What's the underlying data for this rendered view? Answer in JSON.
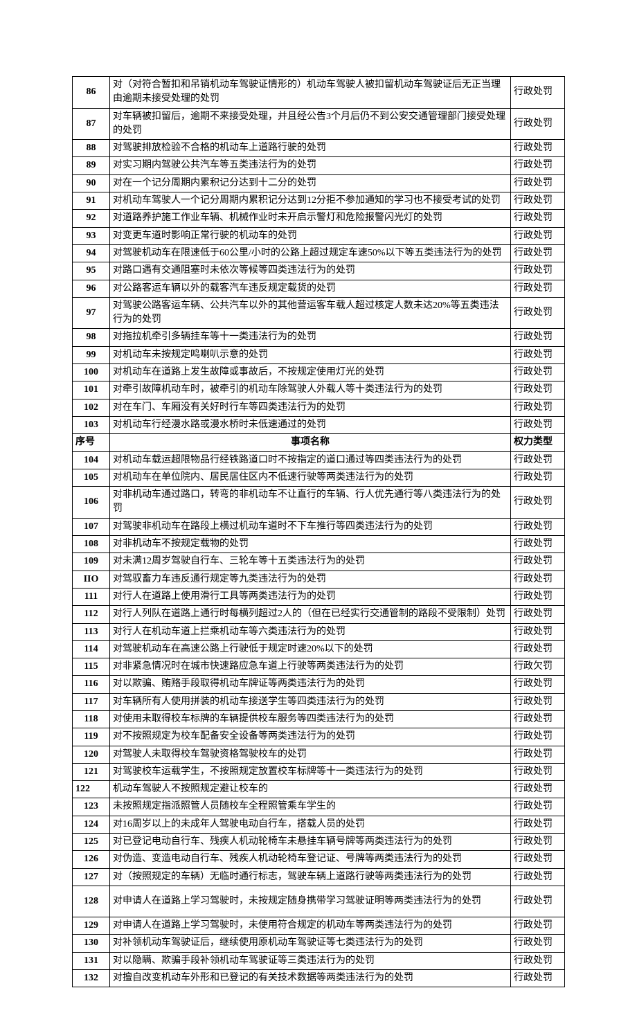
{
  "header": {
    "seq": "序号",
    "desc": "事项名称",
    "type": "权力类型"
  },
  "type_label": "行政处罚",
  "type_label_alt": "行政欠罚",
  "rows": [
    {
      "seq": "86",
      "desc": "对（对符合暂扣和吊销机动车驾驶证情形的）机动车驾驶人被扣留机动车驾驶证后无正当理由逾期未接受处理的处罚",
      "type": "行政处罚"
    },
    {
      "seq": "87",
      "desc": "对车辆被扣留后，逾期不来接受处理，并且经公告3个月后仍不到公安交通管理部门接受处理的处罚",
      "type": "行政处罚"
    },
    {
      "seq": "88",
      "desc": "对驾驶排放检验不合格的机动车上道路行驶的处罚",
      "type": "行政处罚"
    },
    {
      "seq": "89",
      "desc": "对实习期内驾驶公共汽车等五类违法行为的处罚",
      "type": "行政处罚"
    },
    {
      "seq": "90",
      "desc": "对在一个记分周期内累积记分达到十二分的处罚",
      "type": "行政处罚"
    },
    {
      "seq": "91",
      "desc": "对机动车驾驶人一个记分周期内累积记分达到12分拒不参加通知的学习也不接受考试的处罚",
      "type": "行政处罚"
    },
    {
      "seq": "92",
      "desc": "对道路养护施工作业车辆、机械作业时未开启示警灯和危险报警闪光灯的处罚",
      "type": "行政处罚"
    },
    {
      "seq": "93",
      "desc": "对变更车道时影响正常行驶的机动车的处罚",
      "type": "行政处罚"
    },
    {
      "seq": "94",
      "desc": "对驾驶机动车在限速低于60公里/小时的公路上超过规定车速50%以下等五类违法行为的处罚",
      "type": "行政处罚"
    },
    {
      "seq": "95",
      "desc": "对路口遇有交通阻塞时未依次等候等四类违法行为的处罚",
      "type": "行政处罚"
    },
    {
      "seq": "96",
      "desc": "对公路客运车辆以外的载客汽车违反规定载货的处罚",
      "type": "行政处罚"
    },
    {
      "seq": "97",
      "desc": "对驾驶公路客运车辆、公共汽车以外的其他营运客车载人超过核定人数未达20%等五类违法行为的处罚",
      "type": "行政处罚"
    },
    {
      "seq": "98",
      "desc": "对拖拉机牵引多辆挂车等十一类违法行为的处罚",
      "type": "行政处罚"
    },
    {
      "seq": "99",
      "desc": "对机动车未按规定鸣喇叭示意的处罚",
      "type": "行政处罚"
    },
    {
      "seq": "100",
      "desc": "对机动车在道路上发生故障或事故后，不按规定使用灯光的处罚",
      "type": "行政处罚"
    },
    {
      "seq": "101",
      "desc": "对牵引故障机动车时，被牵引的机动车除驾驶人外载人等十类违法行为的处罚",
      "type": "行政处罚"
    },
    {
      "seq": "102",
      "desc": "对在车门、车厢没有关好时行车等四类违法行为的处罚",
      "type": "行政处罚"
    },
    {
      "seq": "103",
      "desc": "对机动车行经漫水路或漫水桥时未低速通过的处罚",
      "type": "行政处罚"
    },
    {
      "seq": "HEADER",
      "desc": "",
      "type": ""
    },
    {
      "seq": "104",
      "desc": "对机动车载运超限物品行经铁路道口时不按指定的道口通过等四类违法行为的处罚",
      "type": "行政处罚"
    },
    {
      "seq": "105",
      "desc": "对机动车在单位院内、居民居住区内不低速行驶等两类违法行为的处罚",
      "type": "行政处罚"
    },
    {
      "seq": "106",
      "desc": "对非机动车通过路口，转弯的非机动车不让直行的车辆、行人优先通行等八类违法行为的处罚",
      "type": "行政处罚"
    },
    {
      "seq": "107",
      "desc": "对驾驶非机动车在路段上横过机动车道时不下车推行等四类违法行为的处罚",
      "type": "行政处罚"
    },
    {
      "seq": "108",
      "desc": "对非机动车不按规定载物的处罚",
      "type": "行政处罚"
    },
    {
      "seq": "109",
      "desc": "对未满12周岁驾驶自行车、三轮车等十五类违法行为的处罚",
      "type": "行政处罚"
    },
    {
      "seq": "IIO",
      "desc": "对驾驭畜力车违反通行规定等九类违法行为的处罚",
      "type": "行政处罚"
    },
    {
      "seq": "111",
      "desc": "对行人在道路上使用滑行工具等两类违法行为的处罚",
      "type": "行政处罚"
    },
    {
      "seq": "112",
      "desc": "对行人列队在道路上通行时每横列超过2人的（但在已经实行交通管制的路段不受限制）处罚",
      "type": "行政处罚"
    },
    {
      "seq": "113",
      "desc": "对行人在机动车道上拦乘机动车等六类违法行为的处罚",
      "type": "行政处罚"
    },
    {
      "seq": "114",
      "desc": "对驾驶机动车在高速公路上行驶低于规定时速20%以下的处罚",
      "type": "行政处罚"
    },
    {
      "seq": "115",
      "desc": "对非紧急情况时在城市快速路应急车道上行驶等两类违法行为的处罚",
      "type": "行政欠罚"
    },
    {
      "seq": "116",
      "desc": "对以欺骗、贿赂手段取得机动车牌证等两类违法行为的处罚",
      "type": "行政处罚"
    },
    {
      "seq": "117",
      "desc": "对车辆所有人使用拼装的机动车接送学生等四类违法行为的处罚",
      "type": "行政处罚"
    },
    {
      "seq": "118",
      "desc": "对使用未取得校车标牌的车辆提供校车服务等四类违法行为的处罚",
      "type": "行政处罚"
    },
    {
      "seq": "119",
      "desc": "对不按照规定为校车配备安全设备等两类违法行为的处罚",
      "type": "行政处罚"
    },
    {
      "seq": "120",
      "desc": "对驾驶人未取得校车驾驶资格驾驶校车的处罚",
      "type": "行政处罚"
    },
    {
      "seq": "121",
      "desc": "对驾驶校车运载学生，不按照规定放置校车标牌等十一类违法行为的处罚",
      "type": "行政处罚"
    },
    {
      "seq": "122",
      "desc": "机动车驾驶人不按照规定避让校车的",
      "type": "行政处罚",
      "seqLeft": true
    },
    {
      "seq": "123",
      "desc": "未按照规定指派照管人员随校车全程照管乘车学生的",
      "type": "行政处罚"
    },
    {
      "seq": "124",
      "desc": "对16周岁以上的未成年人驾驶电动自行车，搭载人员的处罚",
      "type": "行政处罚"
    },
    {
      "seq": "125",
      "desc": "对已登记电动自行车、残疾人机动轮椅车未悬挂车辆号牌等两类违法行为的处罚",
      "type": "行政处罚"
    },
    {
      "seq": "126",
      "desc": "对伪造、变造电动自行车、残疾人机动轮椅车登记证、号牌等两类违法行为的处罚",
      "type": "行政处罚"
    },
    {
      "seq": "127",
      "desc": "对（按照规定的车辆）无临时通行标志，驾驶车辆上道路行驶等两类违法行为的处罚",
      "type": "行政处罚"
    },
    {
      "seq": "128",
      "desc": "对申请人在道路上学习驾驶时，未按规定随身携带学习驾驶证明等两类违法行为的处罚",
      "type": "行政处罚",
      "tall": true
    },
    {
      "seq": "129",
      "desc": "对申请人在道路上学习驾驶时，未使用符合规定的机动车等两类违法行为的处罚",
      "type": "行政处罚"
    },
    {
      "seq": "130",
      "desc": "对补领机动车驾驶证后，继续使用原机动车驾驶证等七类违法行为的处罚",
      "type": "行政处罚"
    },
    {
      "seq": "131",
      "desc": "对以隐瞒、欺骗手段补领机动车驾驶证等三类违法行为的处罚",
      "type": "行政处罚"
    },
    {
      "seq": "132",
      "desc": "对擅自改变机动车外形和已登记的有关技术数据等两类违法行为的处罚",
      "type": "行政处罚"
    }
  ]
}
